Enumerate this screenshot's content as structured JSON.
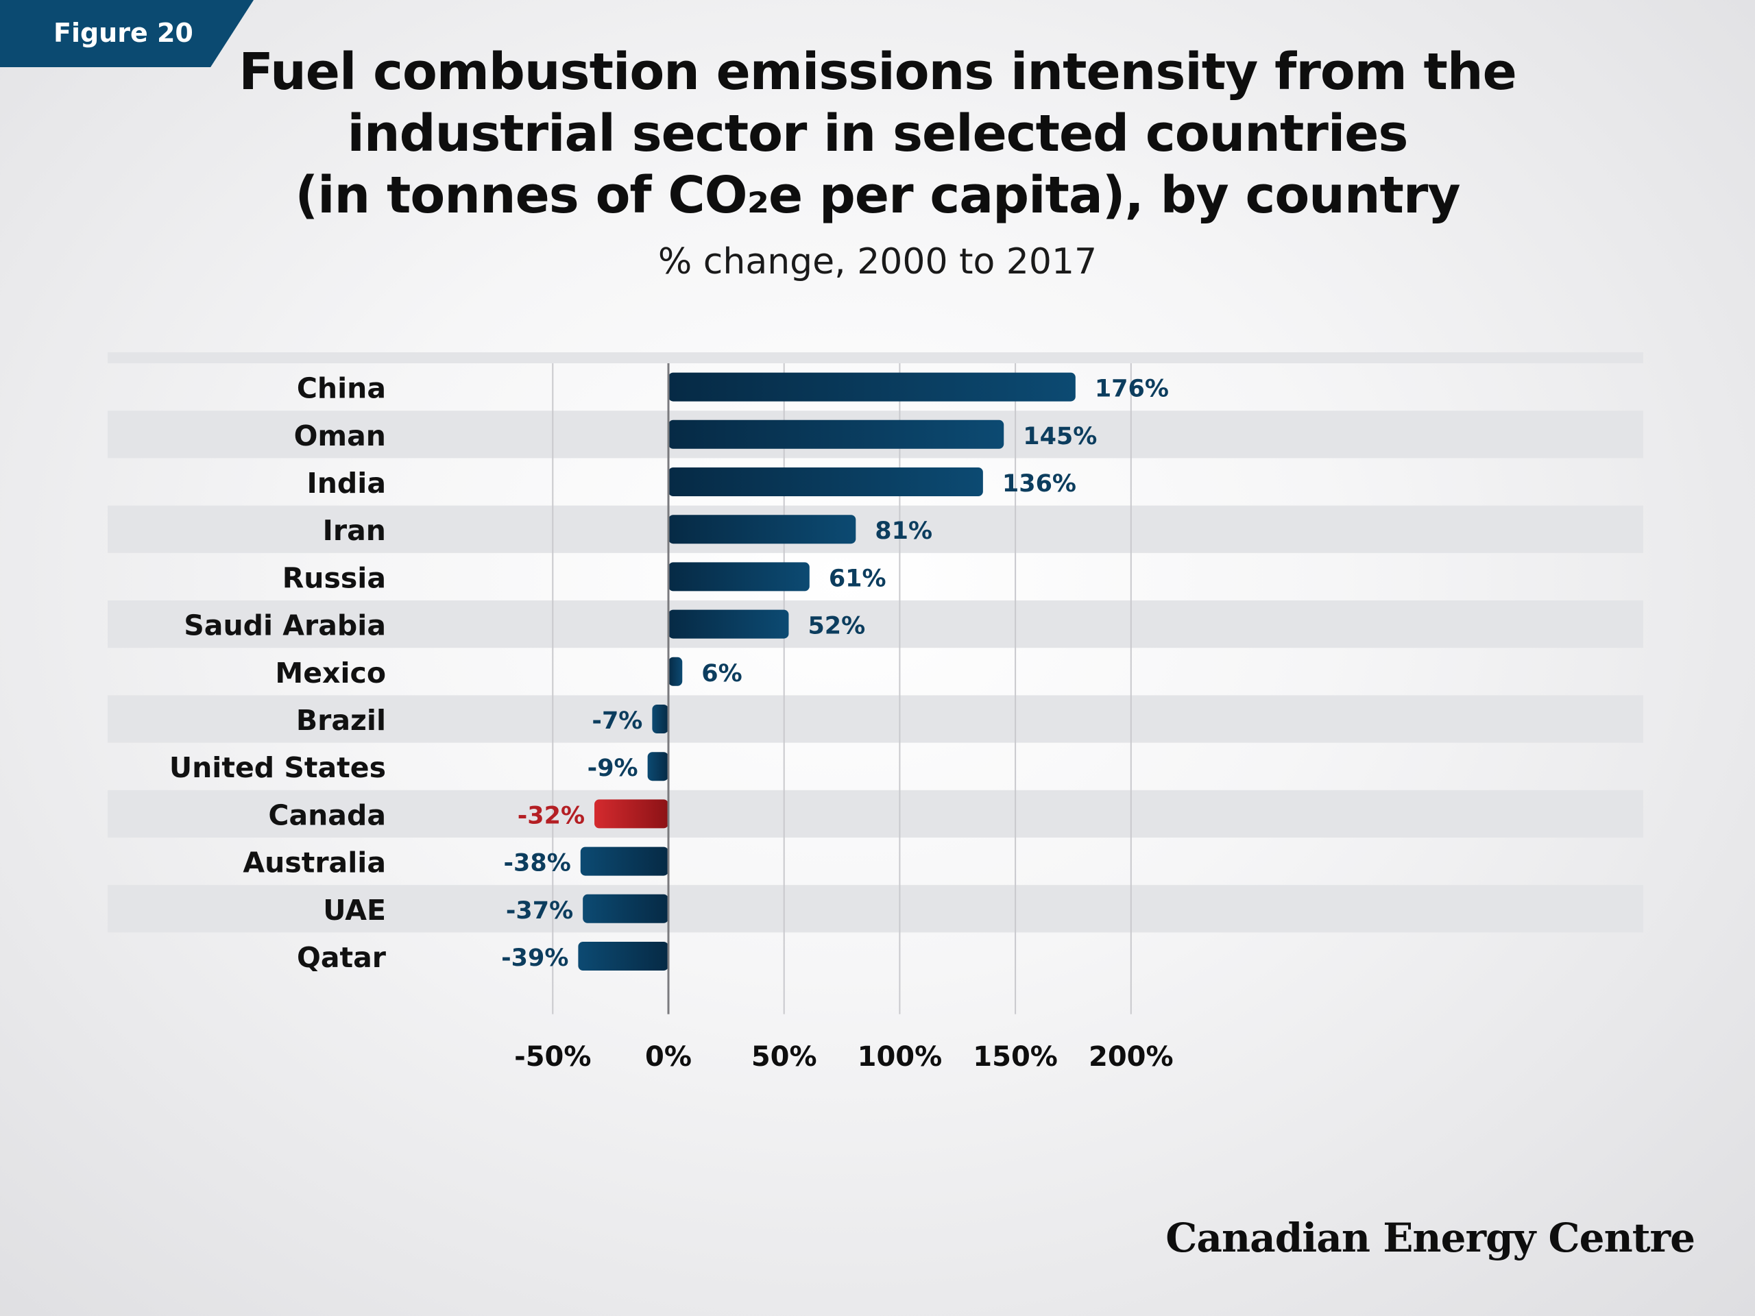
{
  "figure_tag": "Figure 20",
  "title_lines": [
    "Fuel combustion emissions intensity from the",
    "industrial sector in selected countries",
    "(in tonnes of CO₂e per capita), by country"
  ],
  "subtitle": "% change, 2000 to 2017",
  "brand": "Canadian Energy Centre",
  "colors": {
    "bar": "#0c4a72",
    "bar_dark": "#062a45",
    "highlight": "#d42a2e",
    "highlight_dark": "#8c1216",
    "label": "#0c3d5e",
    "highlight_label": "#b41f24",
    "band": "#e3e4e7"
  },
  "chart_data": {
    "type": "bar",
    "orientation": "horizontal",
    "categories": [
      "China",
      "Oman",
      "India",
      "Iran",
      "Russia",
      "Saudi Arabia",
      "Mexico",
      "Brazil",
      "United States",
      "Canada",
      "Australia",
      "UAE",
      "Qatar"
    ],
    "values": [
      176,
      145,
      136,
      81,
      61,
      52,
      6,
      -7,
      -9,
      -32,
      -38,
      -37,
      -39
    ],
    "value_labels": [
      "176%",
      "145%",
      "136%",
      "81%",
      "61%",
      "52%",
      "6%",
      "-7%",
      "-9%",
      "-32%",
      "-38%",
      "-37%",
      "-39%"
    ],
    "highlight": "Canada",
    "xlim": [
      -50,
      200
    ],
    "xticks": [
      -50,
      0,
      50,
      100,
      150,
      200
    ],
    "xtick_labels": [
      "-50%",
      "0%",
      "50%",
      "100%",
      "150%",
      "200%"
    ],
    "grid": true
  }
}
